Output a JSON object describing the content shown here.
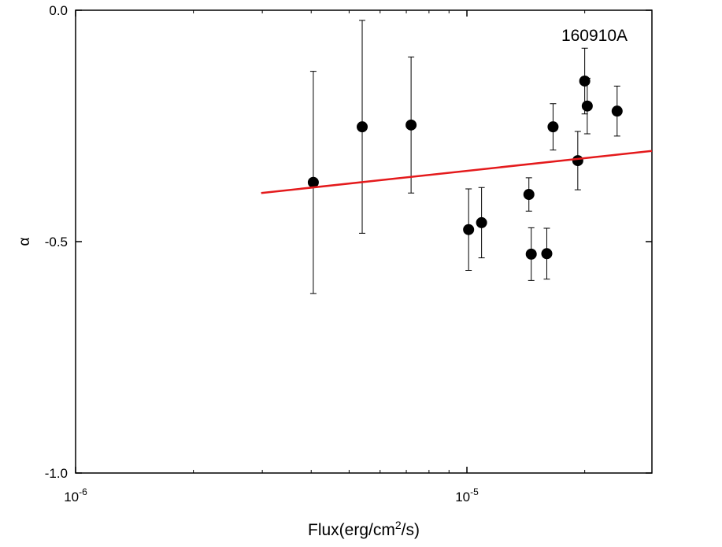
{
  "chart_data": {
    "type": "scatter",
    "annotation": "160910A",
    "x_label": [
      "Flux(erg/cm",
      "2",
      "/s)"
    ],
    "y_label": "α",
    "xscale": "log",
    "xlim": [
      1e-06,
      2.97e-05
    ],
    "ylim": [
      -1.0,
      0.0
    ],
    "xticks": [
      {
        "value": 1e-06,
        "label": [
          "10",
          "-6"
        ]
      },
      {
        "value": 1e-05,
        "label": [
          "10",
          "-5"
        ]
      }
    ],
    "xminorticks": [
      2e-06,
      3e-06,
      4e-06,
      5e-06,
      6e-06,
      7e-06,
      8e-06,
      9e-06,
      2e-05
    ],
    "yticks": [
      {
        "value": 0.0,
        "label": "0.0"
      },
      {
        "value": -0.5,
        "label": "-0.5"
      },
      {
        "value": -1.0,
        "label": "-1.0"
      }
    ],
    "series": [
      {
        "color": "#000000",
        "x": [
          4.05e-06,
          5.4e-06,
          7.2e-06,
          1.01e-05,
          1.09e-05,
          1.44e-05,
          1.46e-05,
          1.6e-05,
          1.66e-05,
          1.92e-05,
          2e-05,
          2.03e-05,
          2.42e-05
        ],
        "values": [
          -0.372,
          -0.252,
          -0.248,
          -0.474,
          -0.459,
          -0.398,
          -0.527,
          -0.526,
          -0.252,
          -0.325,
          -0.153,
          -0.207,
          -0.218
        ],
        "yerr": [
          0.24,
          0.23,
          0.147,
          0.088,
          0.076,
          0.036,
          0.057,
          0.055,
          0.05,
          0.063,
          0.071,
          0.06,
          0.054
        ]
      }
    ],
    "fit": {
      "color": "#e41a1c",
      "x": [
        2.98e-06,
        2.97e-05
      ],
      "values": [
        -0.395,
        -0.304
      ]
    }
  }
}
